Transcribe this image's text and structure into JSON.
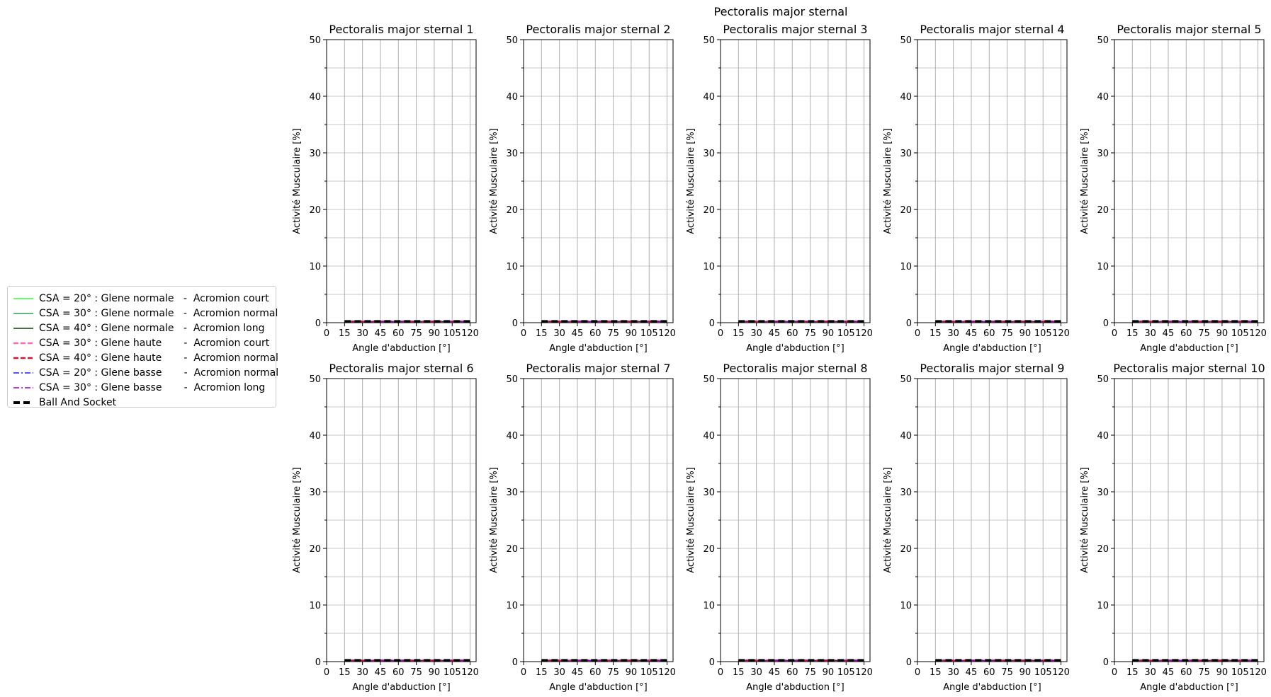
{
  "figure_title": "Pectoralis major sternal",
  "legend": [
    {
      "label": "CSA = 20° : Glene normale   -  Acromion court",
      "color": "#33ff33",
      "dash": "solid",
      "width": 1.5
    },
    {
      "label": "CSA = 30° : Glene normale   -  Acromion normal",
      "color": "#2e9e57",
      "dash": "solid",
      "width": 1.5
    },
    {
      "label": "CSA = 40° : Glene normale   -  Acromion long",
      "color": "#0d3d0d",
      "dash": "solid",
      "width": 1.5
    },
    {
      "label": "CSA = 30° : Glene haute       -  Acromion court",
      "color": "#ff69b4",
      "dash": "dashed",
      "width": 2.5
    },
    {
      "label": "CSA = 40° : Glene haute       -  Acromion normal",
      "color": "#e0102a",
      "dash": "dashed",
      "width": 2.5
    },
    {
      "label": "CSA = 20° : Glene basse       -  Acromion normal",
      "color": "#1a1aff",
      "dash": "dashdot",
      "width": 1.5
    },
    {
      "label": "CSA = 30° : Glene basse       -  Acromion long",
      "color": "#9400d3",
      "dash": "dashdot",
      "width": 1.5
    },
    {
      "label": "Ball And Socket",
      "color": "#000000",
      "dash": "dashed",
      "width": 4
    }
  ],
  "chart_data": [
    {
      "type": "line",
      "title": "Pectoralis major sternal 1",
      "xlabel": "Angle d'abduction [°]",
      "ylabel": "Activité Musculaire [%]",
      "xlim": [
        0,
        125
      ],
      "ylim": [
        0,
        50
      ],
      "xticks": [
        0,
        15,
        30,
        45,
        60,
        75,
        90,
        105,
        120
      ],
      "yticks": [
        0,
        10,
        20,
        30,
        40,
        50
      ],
      "grid": true,
      "x": [
        15,
        30,
        45,
        60,
        75,
        90,
        105,
        120
      ],
      "series_value": 0.2
    },
    {
      "type": "line",
      "title": "Pectoralis major sternal 2",
      "xlabel": "Angle d'abduction [°]",
      "ylabel": "Activité Musculaire [%]",
      "xlim": [
        0,
        125
      ],
      "ylim": [
        0,
        50
      ],
      "xticks": [
        0,
        15,
        30,
        45,
        60,
        75,
        90,
        105,
        120
      ],
      "yticks": [
        0,
        10,
        20,
        30,
        40,
        50
      ],
      "grid": true,
      "x": [
        15,
        30,
        45,
        60,
        75,
        90,
        105,
        120
      ],
      "series_value": 0.2
    },
    {
      "type": "line",
      "title": "Pectoralis major sternal 3",
      "xlabel": "Angle d'abduction [°]",
      "ylabel": "Activité Musculaire [%]",
      "xlim": [
        0,
        125
      ],
      "ylim": [
        0,
        50
      ],
      "xticks": [
        0,
        15,
        30,
        45,
        60,
        75,
        90,
        105,
        120
      ],
      "yticks": [
        0,
        10,
        20,
        30,
        40,
        50
      ],
      "grid": true,
      "x": [
        15,
        30,
        45,
        60,
        75,
        90,
        105,
        120
      ],
      "series_value": 0.2
    },
    {
      "type": "line",
      "title": "Pectoralis major sternal 4",
      "xlabel": "Angle d'abduction [°]",
      "ylabel": "Activité Musculaire [%]",
      "xlim": [
        0,
        125
      ],
      "ylim": [
        0,
        50
      ],
      "xticks": [
        0,
        15,
        30,
        45,
        60,
        75,
        90,
        105,
        120
      ],
      "yticks": [
        0,
        10,
        20,
        30,
        40,
        50
      ],
      "grid": true,
      "x": [
        15,
        30,
        45,
        60,
        75,
        90,
        105,
        120
      ],
      "series_value": 0.2
    },
    {
      "type": "line",
      "title": "Pectoralis major sternal 5",
      "xlabel": "Angle d'abduction [°]",
      "ylabel": "Activité Musculaire [%]",
      "xlim": [
        0,
        125
      ],
      "ylim": [
        0,
        50
      ],
      "xticks": [
        0,
        15,
        30,
        45,
        60,
        75,
        90,
        105,
        120
      ],
      "yticks": [
        0,
        10,
        20,
        30,
        40,
        50
      ],
      "grid": true,
      "x": [
        15,
        30,
        45,
        60,
        75,
        90,
        105,
        120
      ],
      "series_value": 0.2
    },
    {
      "type": "line",
      "title": "Pectoralis major sternal 6",
      "xlabel": "Angle d'abduction [°]",
      "ylabel": "Activité Musculaire [%]",
      "xlim": [
        0,
        125
      ],
      "ylim": [
        0,
        50
      ],
      "xticks": [
        0,
        15,
        30,
        45,
        60,
        75,
        90,
        105,
        120
      ],
      "yticks": [
        0,
        10,
        20,
        30,
        40,
        50
      ],
      "grid": true,
      "x": [
        15,
        30,
        45,
        60,
        75,
        90,
        105,
        120
      ],
      "series_value": 0.2
    },
    {
      "type": "line",
      "title": "Pectoralis major sternal 7",
      "xlabel": "Angle d'abduction [°]",
      "ylabel": "Activité Musculaire [%]",
      "xlim": [
        0,
        125
      ],
      "ylim": [
        0,
        50
      ],
      "xticks": [
        0,
        15,
        30,
        45,
        60,
        75,
        90,
        105,
        120
      ],
      "yticks": [
        0,
        10,
        20,
        30,
        40,
        50
      ],
      "grid": true,
      "x": [
        15,
        30,
        45,
        60,
        75,
        90,
        105,
        120
      ],
      "series_value": 0.2
    },
    {
      "type": "line",
      "title": "Pectoralis major sternal 8",
      "xlabel": "Angle d'abduction [°]",
      "ylabel": "Activité Musculaire [%]",
      "xlim": [
        0,
        125
      ],
      "ylim": [
        0,
        50
      ],
      "xticks": [
        0,
        15,
        30,
        45,
        60,
        75,
        90,
        105,
        120
      ],
      "yticks": [
        0,
        10,
        20,
        30,
        40,
        50
      ],
      "grid": true,
      "x": [
        15,
        30,
        45,
        60,
        75,
        90,
        105,
        120
      ],
      "series_value": 0.2
    },
    {
      "type": "line",
      "title": "Pectoralis major sternal 9",
      "xlabel": "Angle d'abduction [°]",
      "ylabel": "Activité Musculaire [%]",
      "xlim": [
        0,
        125
      ],
      "ylim": [
        0,
        50
      ],
      "xticks": [
        0,
        15,
        30,
        45,
        60,
        75,
        90,
        105,
        120
      ],
      "yticks": [
        0,
        10,
        20,
        30,
        40,
        50
      ],
      "grid": true,
      "x": [
        15,
        30,
        45,
        60,
        75,
        90,
        105,
        120
      ],
      "series_value": 0.2
    },
    {
      "type": "line",
      "title": "Pectoralis major sternal 10",
      "xlabel": "Angle d'abduction [°]",
      "ylabel": "Activité Musculaire [%]",
      "xlim": [
        0,
        125
      ],
      "ylim": [
        0,
        50
      ],
      "xticks": [
        0,
        15,
        30,
        45,
        60,
        75,
        90,
        105,
        120
      ],
      "yticks": [
        0,
        10,
        20,
        30,
        40,
        50
      ],
      "grid": true,
      "x": [
        15,
        30,
        45,
        60,
        75,
        90,
        105,
        120
      ],
      "series_value": 0.2
    }
  ]
}
